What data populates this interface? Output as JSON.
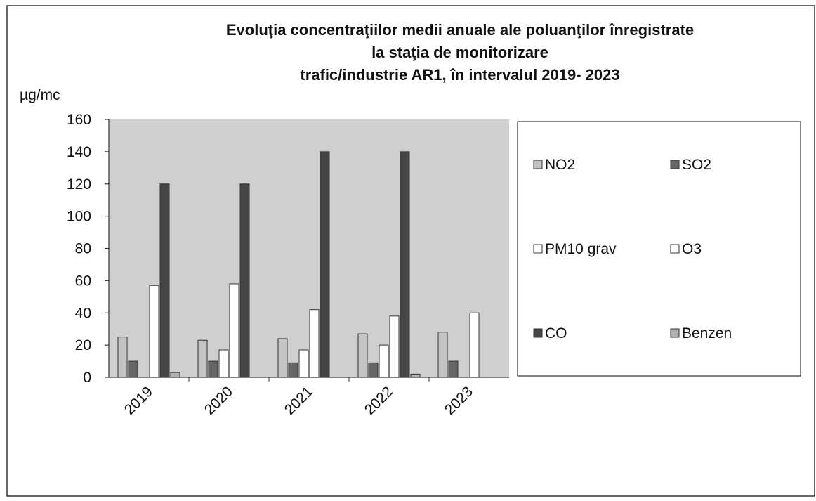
{
  "chart_data": {
    "type": "bar",
    "title": [
      "Evoluţia concentraţiilor medii anuale ale poluanţilor înregistrate",
      "la staţia de monitorizare",
      "trafic/industrie AR1, în intervalul 2019- 2023"
    ],
    "y_label": "µg/mc",
    "categories": [
      "2019",
      "2020",
      "2021",
      "2022",
      "2023"
    ],
    "series": [
      {
        "name": "NO2",
        "color": "#c4c4c4",
        "values": [
          25,
          23,
          24,
          27,
          28
        ]
      },
      {
        "name": "SO2",
        "color": "#666666",
        "values": [
          10,
          10,
          9,
          9,
          10
        ]
      },
      {
        "name": "PM10 grav",
        "color": "#ffffff",
        "values": [
          null,
          17,
          17,
          20,
          null
        ]
      },
      {
        "name": "O3",
        "color": "#ffffff",
        "values": [
          57,
          58,
          42,
          38,
          40
        ]
      },
      {
        "name": "CO",
        "color": "#454545",
        "values": [
          120,
          120,
          140,
          140,
          null
        ]
      },
      {
        "name": "Benzen",
        "color": "#b0b0b0",
        "values": [
          3,
          null,
          null,
          2,
          null
        ]
      }
    ],
    "ylim": [
      0,
      160
    ],
    "yticks": [
      0,
      20,
      40,
      60,
      80,
      100,
      120,
      140,
      160
    ]
  }
}
